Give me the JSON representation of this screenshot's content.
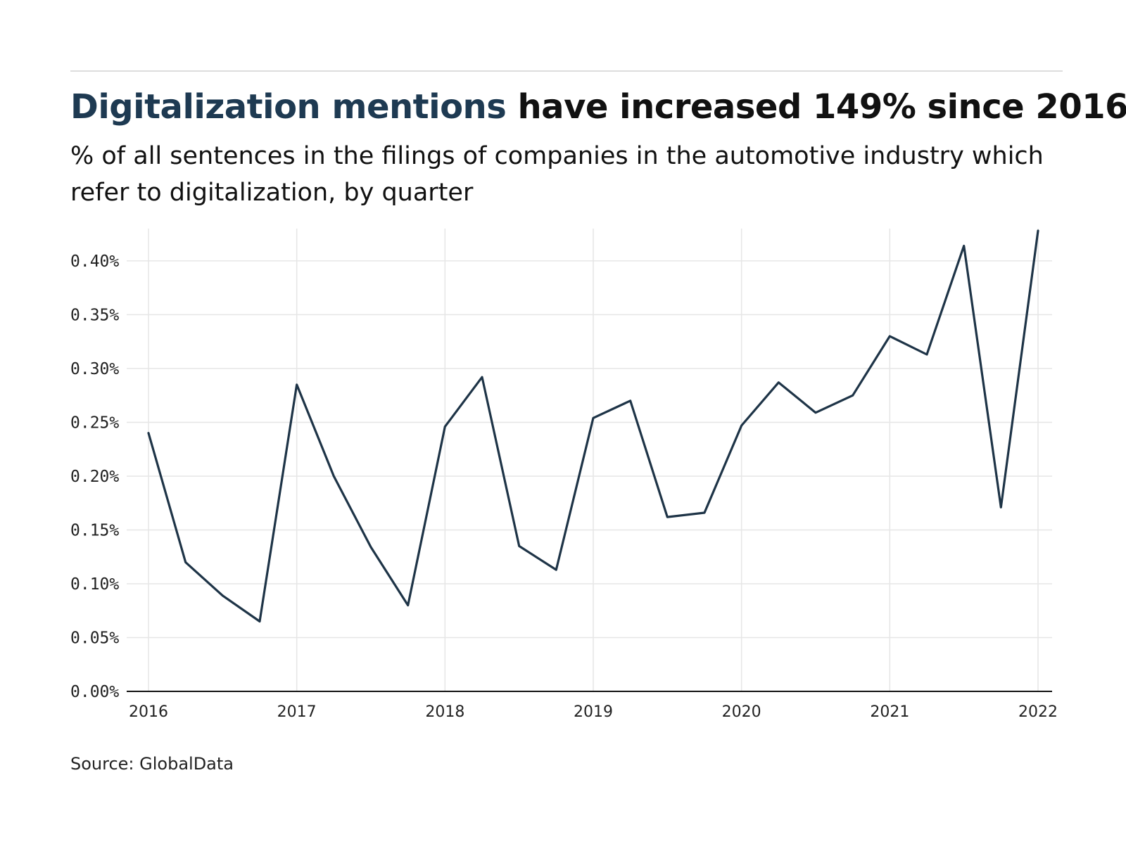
{
  "header": {
    "title_highlight": "Digitalization mentions",
    "title_rest": " have increased 149% since 2016",
    "subtitle": "% of all sentences in the filings of companies in the automotive industry which refer to digitalization, by quarter"
  },
  "footer": {
    "source": "Source: GlobalData"
  },
  "colors": {
    "line": "#1e3447",
    "highlight": "#1e3a52",
    "grid": "#e6e6e6",
    "axis": "#111111"
  },
  "chart_data": {
    "type": "line",
    "title": "Digitalization mentions have increased 149% since 2016",
    "subtitle": "% of all sentences in the filings of companies in the automotive industry which refer to digitalization, by quarter",
    "xlabel": "",
    "ylabel": "",
    "ylim": [
      0,
      0.43
    ],
    "xlim": [
      2016,
      2022
    ],
    "grid": true,
    "y_ticks": [
      {
        "value": 0.0,
        "label": "0.00%"
      },
      {
        "value": 0.05,
        "label": "0.05%"
      },
      {
        "value": 0.1,
        "label": "0.10%"
      },
      {
        "value": 0.15,
        "label": "0.15%"
      },
      {
        "value": 0.2,
        "label": "0.20%"
      },
      {
        "value": 0.25,
        "label": "0.25%"
      },
      {
        "value": 0.3,
        "label": "0.30%"
      },
      {
        "value": 0.35,
        "label": "0.35%"
      },
      {
        "value": 0.4,
        "label": "0.40%"
      }
    ],
    "x_ticks": [
      {
        "value": 2016,
        "label": "2016"
      },
      {
        "value": 2017,
        "label": "2017"
      },
      {
        "value": 2018,
        "label": "2018"
      },
      {
        "value": 2019,
        "label": "2019"
      },
      {
        "value": 2020,
        "label": "2020"
      },
      {
        "value": 2021,
        "label": "2021"
      },
      {
        "value": 2022,
        "label": "2022"
      }
    ],
    "series": [
      {
        "points": [
          {
            "x": 2016.0,
            "y": 0.24
          },
          {
            "x": 2016.25,
            "y": 0.12
          },
          {
            "x": 2016.5,
            "y": 0.089
          },
          {
            "x": 2016.75,
            "y": 0.065
          },
          {
            "x": 2017.0,
            "y": 0.285
          },
          {
            "x": 2017.25,
            "y": 0.2
          },
          {
            "x": 2017.5,
            "y": 0.134
          },
          {
            "x": 2017.75,
            "y": 0.08
          },
          {
            "x": 2018.0,
            "y": 0.246
          },
          {
            "x": 2018.25,
            "y": 0.292
          },
          {
            "x": 2018.5,
            "y": 0.135
          },
          {
            "x": 2018.75,
            "y": 0.113
          },
          {
            "x": 2019.0,
            "y": 0.254
          },
          {
            "x": 2019.25,
            "y": 0.27
          },
          {
            "x": 2019.5,
            "y": 0.162
          },
          {
            "x": 2019.75,
            "y": 0.166
          },
          {
            "x": 2020.0,
            "y": 0.247
          },
          {
            "x": 2020.25,
            "y": 0.287
          },
          {
            "x": 2020.5,
            "y": 0.259
          },
          {
            "x": 2020.75,
            "y": 0.275
          },
          {
            "x": 2021.0,
            "y": 0.33
          },
          {
            "x": 2021.25,
            "y": 0.313
          },
          {
            "x": 2021.5,
            "y": 0.414
          },
          {
            "x": 2021.75,
            "y": 0.171
          },
          {
            "x": 2022.0,
            "y": 0.428
          }
        ]
      }
    ]
  }
}
